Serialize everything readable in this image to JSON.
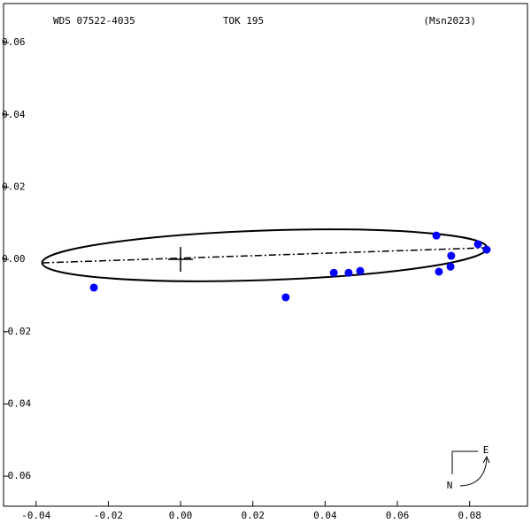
{
  "chart_data": {
    "type": "scatter",
    "title": "TOK 195",
    "header_left": "WDS 07522-4035",
    "header_right": "(Msn2023)",
    "compass_east": "E",
    "compass_north": "N",
    "color": "#0000ff",
    "x": [
      -0.024,
      0.0291,
      0.0424,
      0.0465,
      0.0497,
      0.0708,
      0.0715,
      0.0747,
      0.0749,
      0.0823,
      0.0847
    ],
    "values": [
      -0.0078,
      -0.0105,
      -0.0037,
      -0.0037,
      -0.0032,
      0.0066,
      -0.0034,
      -0.002,
      0.001,
      0.0042,
      0.0027
    ],
    "xlim": [
      -0.049,
      0.096
    ],
    "ylim": [
      -0.0683,
      0.0708
    ],
    "xticks": [
      -0.04,
      -0.02,
      {
        "value": 0,
        "label": "0.00"
      },
      0.02,
      0.04,
      0.06,
      0.08
    ],
    "yticks": [
      0.06,
      0.04,
      0.02,
      {
        "value": 0,
        "label": "0.00"
      },
      -0.02,
      -0.04,
      -0.06
    ]
  }
}
